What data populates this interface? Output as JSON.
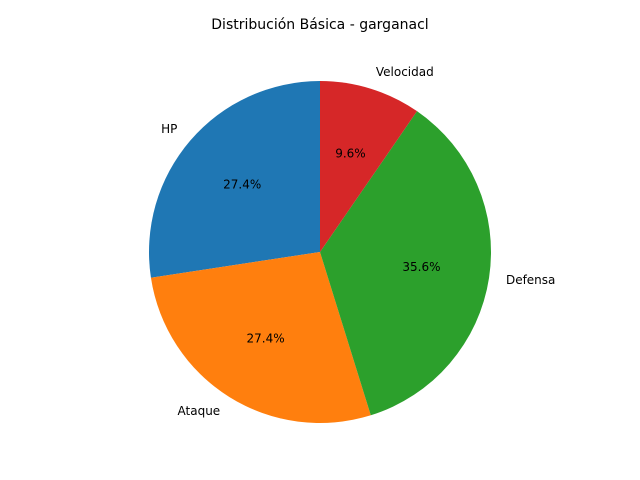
{
  "chart_data": {
    "type": "pie",
    "title": "Distribución Básica - garganacl",
    "start_angle_deg": 90,
    "direction": "counterclockwise",
    "slices": [
      {
        "label": "HP",
        "value": 27.4,
        "pct_label": "27.4%",
        "color": "#1f77b4"
      },
      {
        "label": "Ataque",
        "value": 27.4,
        "pct_label": "27.4%",
        "color": "#ff7f0e"
      },
      {
        "label": "Defensa",
        "value": 35.6,
        "pct_label": "35.6%",
        "color": "#2ca02c"
      },
      {
        "label": "Velocidad",
        "value": 9.6,
        "pct_label": "9.6%",
        "color": "#d62728"
      }
    ]
  }
}
